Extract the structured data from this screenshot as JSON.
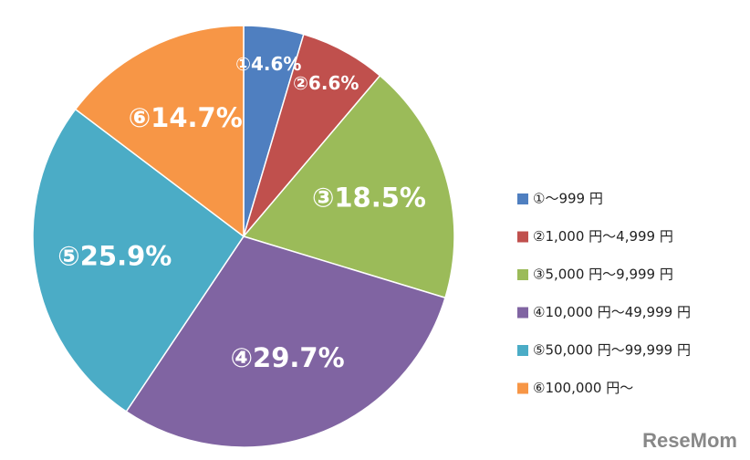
{
  "chart_data": {
    "type": "pie",
    "categories": [
      "①～999 円",
      "②1,000 円～4,999 円",
      "③5,000 円～9,999 円",
      "④10,000 円～49,999 円",
      "⑤50,000 円～99,999 円",
      "⑥100,000 円～"
    ],
    "values": [
      4.6,
      6.6,
      18.5,
      29.7,
      25.9,
      14.7
    ],
    "value_labels": [
      "①4.6%",
      "②6.6%",
      "③18.5%",
      "④29.7%",
      "⑤25.9%",
      "⑥14.7%"
    ],
    "colors": [
      "#4f7fc0",
      "#c0504d",
      "#9bbb59",
      "#8064a2",
      "#4bacc6",
      "#f79646"
    ],
    "legend": "right",
    "watermark": "ReseMom"
  }
}
